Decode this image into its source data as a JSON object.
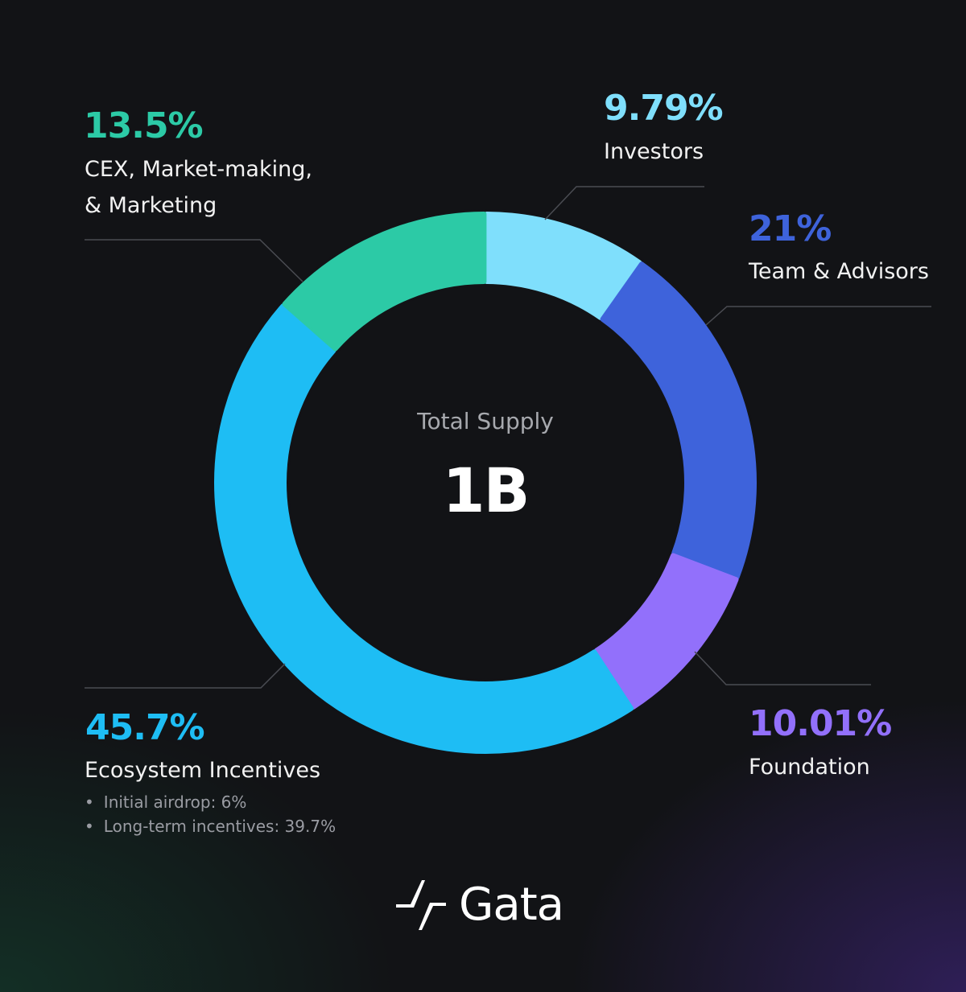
{
  "chart_data": {
    "type": "pie",
    "donut": true,
    "center": {
      "title": "Total Supply",
      "value": "1B"
    },
    "segments": [
      {
        "label": "Investors",
        "percent_label": "9.79%",
        "value": 9.79,
        "color": "#7fdffc"
      },
      {
        "label": "Team & Advisors",
        "percent_label": "21%",
        "value": 21,
        "color": "#3e63db"
      },
      {
        "label": "Foundation",
        "percent_label": "10.01%",
        "value": 10.01,
        "color": "#9270fb"
      },
      {
        "label": "Ecosystem Incentives",
        "percent_label": "45.7%",
        "value": 45.7,
        "color": "#1ebdf4",
        "details": [
          "Initial airdrop: 6%",
          "Long-term incentives: 39.7%"
        ]
      },
      {
        "label": "CEX, Market-making, & Marketing",
        "label_lines": [
          "CEX, Market-making,",
          "& Marketing"
        ],
        "percent_label": "13.5%",
        "value": 13.5,
        "color": "#2ccaa6"
      }
    ]
  },
  "colors": {
    "background": "#121316",
    "leader_line": "#4a4c52",
    "center_title": "#a7a9ae",
    "detail_text": "#9a9ca3"
  },
  "brand": {
    "name": "Gata",
    "icon": "gata-logo-icon"
  }
}
